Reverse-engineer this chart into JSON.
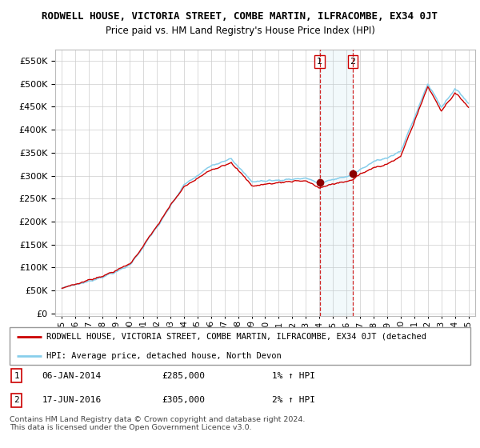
{
  "title": "RODWELL HOUSE, VICTORIA STREET, COMBE MARTIN, ILFRACOMBE, EX34 0JT",
  "subtitle": "Price paid vs. HM Land Registry's House Price Index (HPI)",
  "yticks": [
    0,
    50000,
    100000,
    150000,
    200000,
    250000,
    300000,
    350000,
    400000,
    450000,
    500000,
    550000
  ],
  "legend_line1": "RODWELL HOUSE, VICTORIA STREET, COMBE MARTIN, ILFRACOMBE, EX34 0JT (detached",
  "legend_line2": "HPI: Average price, detached house, North Devon",
  "sale1_date": "06-JAN-2014",
  "sale1_price": 285000,
  "sale1_hpi": "1% ↑ HPI",
  "sale2_date": "17-JUN-2016",
  "sale2_price": 305000,
  "sale2_hpi": "2% ↑ HPI",
  "footer": "Contains HM Land Registry data © Crown copyright and database right 2024.\nThis data is licensed under the Open Government Licence v3.0.",
  "hpi_color": "#87CEEB",
  "price_color": "#CC0000",
  "sale1_x": 2014.03,
  "sale2_x": 2016.46,
  "bg_color": "#f0f4f8"
}
